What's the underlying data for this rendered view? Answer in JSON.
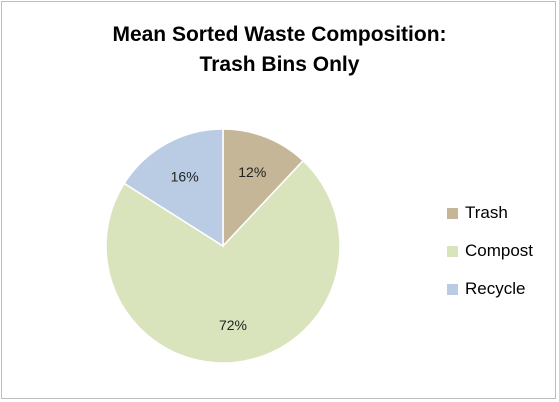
{
  "chart_data": {
    "type": "pie",
    "title_lines": [
      "Mean Sorted Waste Composition:",
      "Trash Bins Only"
    ],
    "slices": [
      {
        "label": "Trash",
        "value": 12,
        "data_label": "12%",
        "color": "#c4b697"
      },
      {
        "label": "Compost",
        "value": 72,
        "data_label": "72%",
        "color": "#d9e4bd"
      },
      {
        "label": "Recycle",
        "value": 16,
        "data_label": "16%",
        "color": "#b9cce4"
      }
    ],
    "start_angle_deg": 0,
    "direction": "clockwise",
    "legend_position": "right"
  }
}
